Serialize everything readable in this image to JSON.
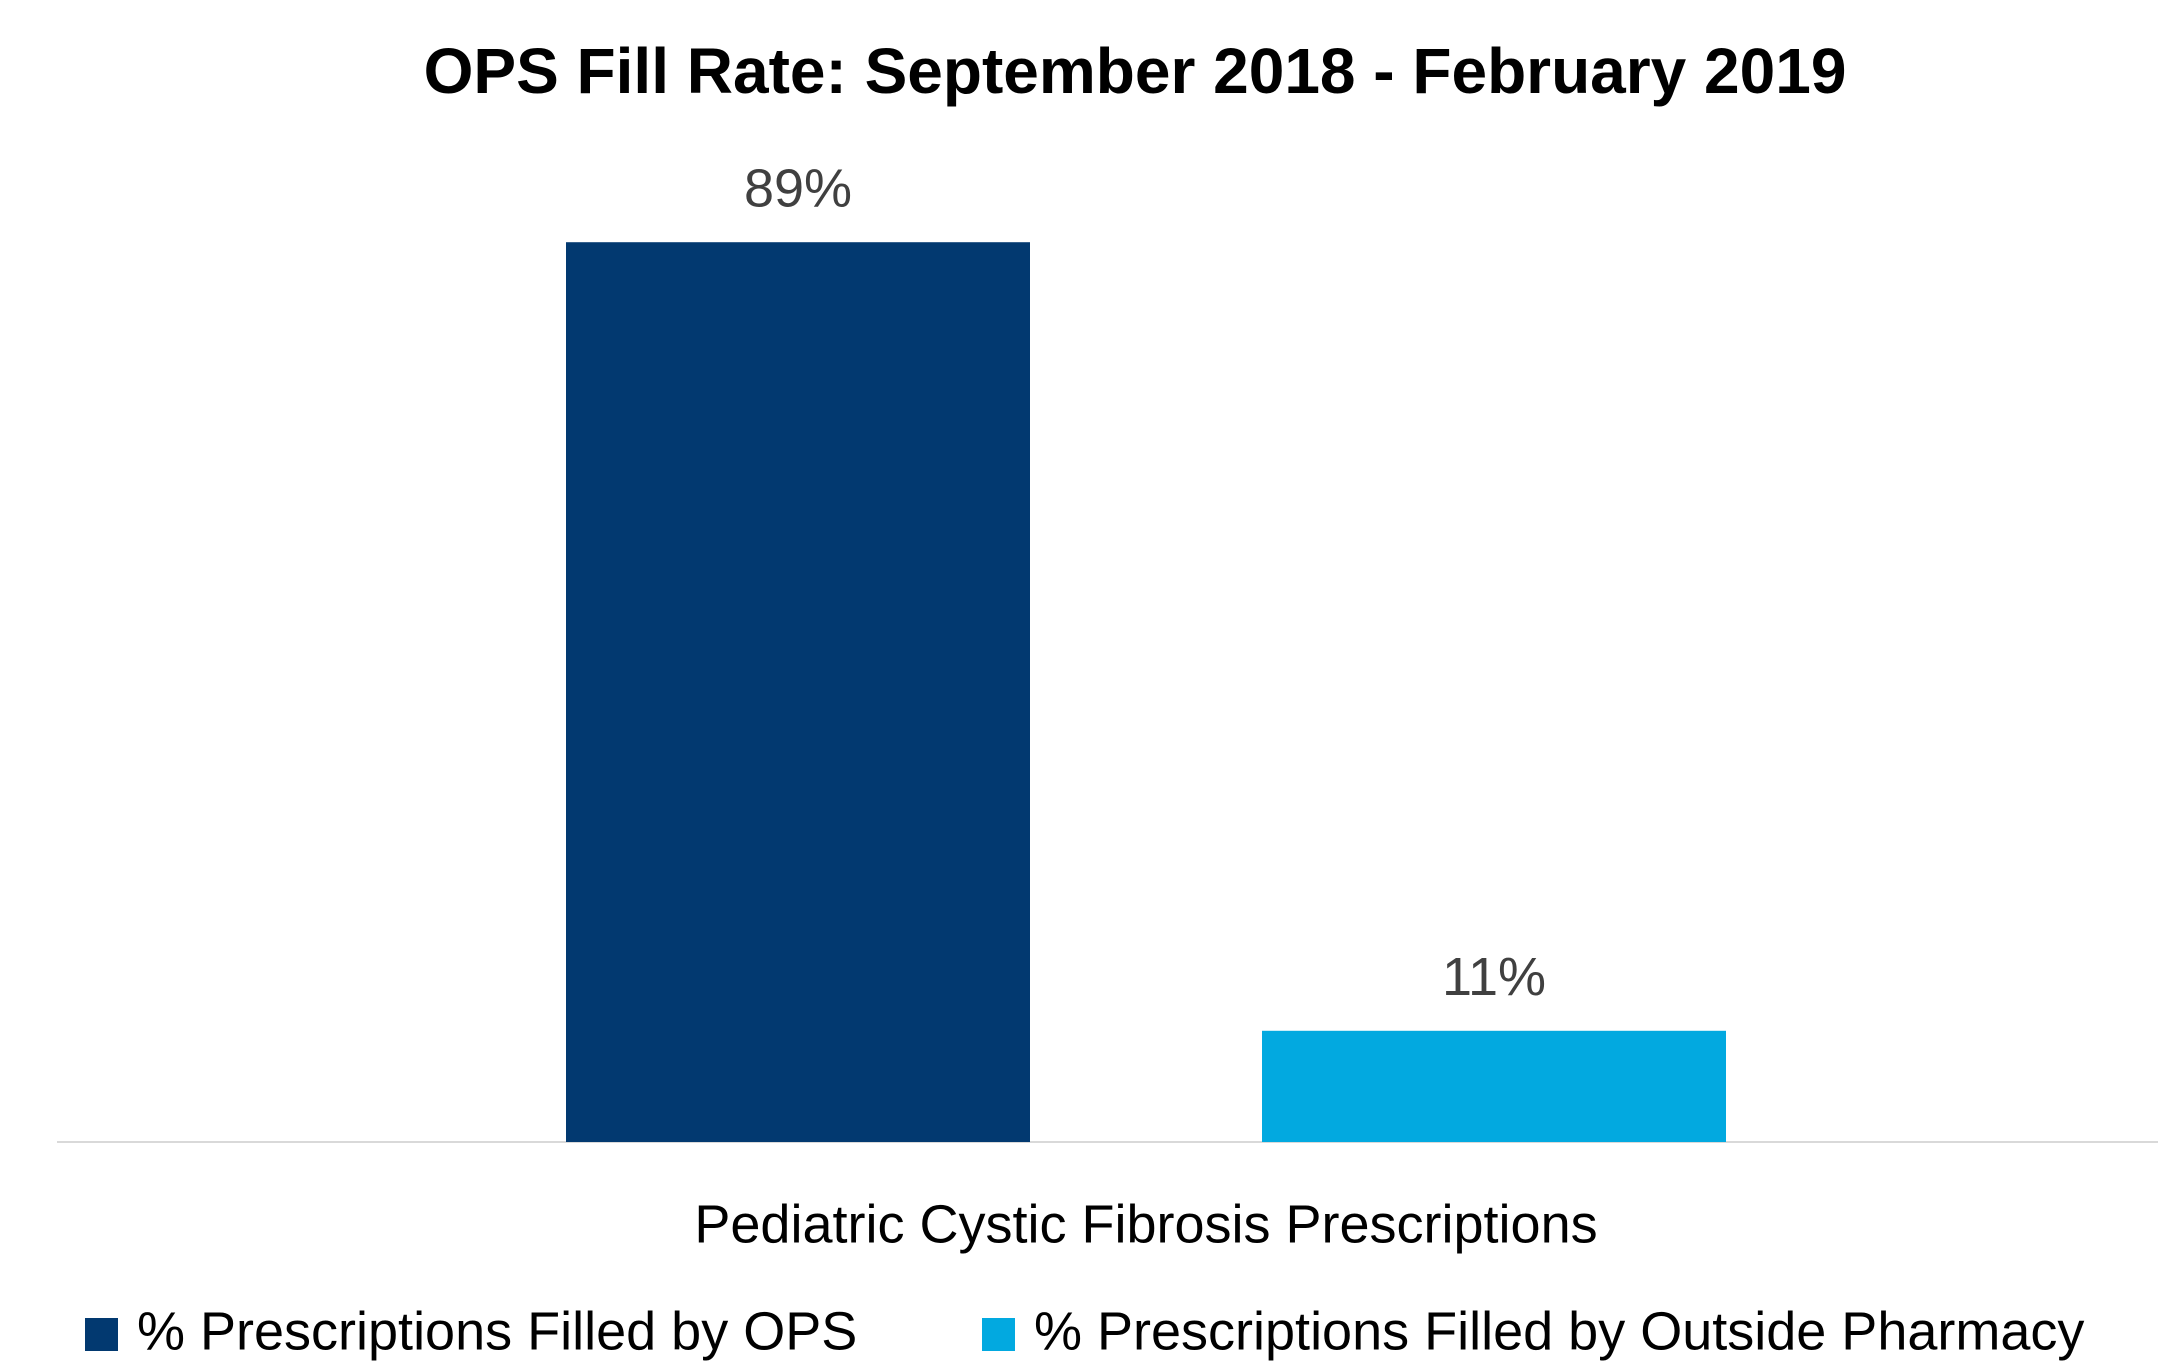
{
  "chart_data": {
    "type": "bar",
    "title": "OPS Fill Rate: September 2018 - February 2019",
    "categories": [
      "Pediatric Cystic Fibrosis Prescriptions"
    ],
    "series": [
      {
        "name": "% Prescriptions Filled by OPS",
        "color": "#023970",
        "values": [
          89
        ],
        "value_labels": [
          "89%"
        ]
      },
      {
        "name": "% Prescriptions Filled by Outside Pharmacy",
        "color": "#02a9e0",
        "values": [
          11
        ],
        "value_labels": [
          "11%"
        ]
      }
    ],
    "ylim": [
      0,
      100
    ],
    "legend": "bottom"
  }
}
